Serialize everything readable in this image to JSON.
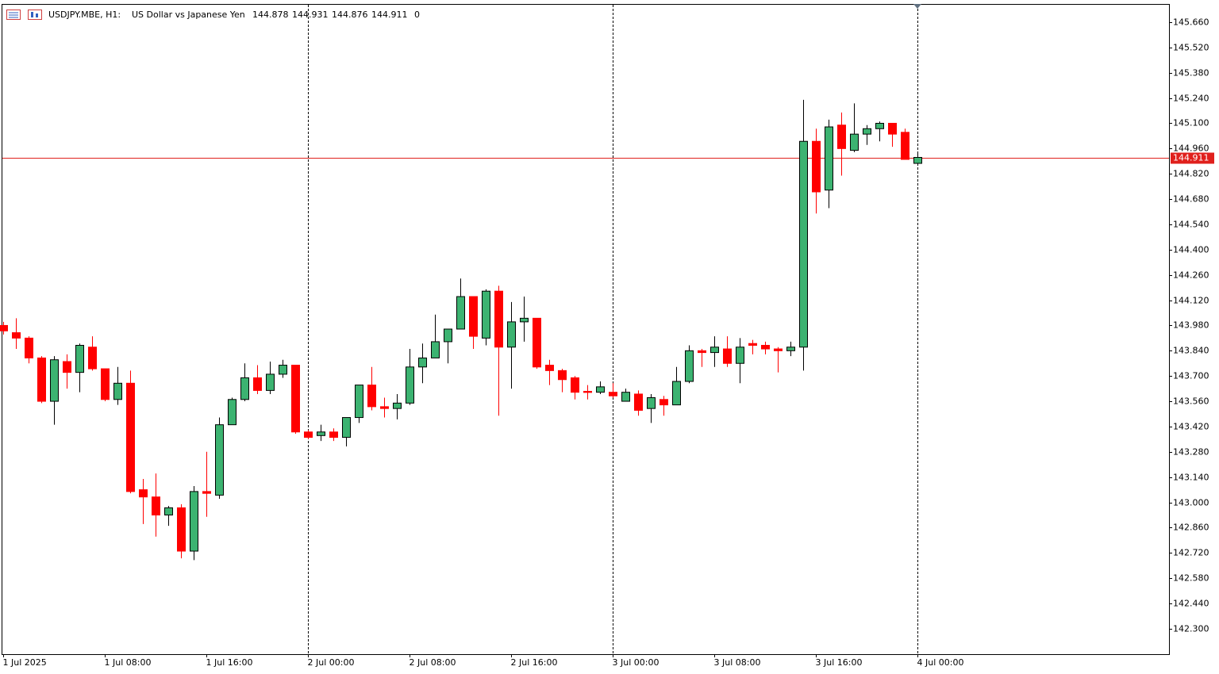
{
  "chart_data": {
    "type": "candlestick",
    "header": {
      "symbol": "USDJPY.MBE, H1:",
      "description": "US Dollar vs Japanese Yen",
      "open": 144.878,
      "high": 144.931,
      "low": 144.876,
      "close": 144.911,
      "volume": 0
    },
    "categories": [
      "1 Jul 2025",
      null,
      null,
      null,
      null,
      null,
      null,
      null,
      "1 Jul 08:00",
      null,
      null,
      null,
      null,
      null,
      null,
      null,
      "1 Jul 16:00",
      null,
      null,
      null,
      null,
      null,
      null,
      null,
      "2 Jul 00:00",
      null,
      null,
      null,
      null,
      null,
      null,
      null,
      "2 Jul 08:00",
      null,
      null,
      null,
      null,
      null,
      null,
      null,
      "2 Jul 16:00",
      null,
      null,
      null,
      null,
      null,
      null,
      null,
      "3 Jul 00:00",
      null,
      null,
      null,
      null,
      null,
      null,
      null,
      "3 Jul 08:00",
      null,
      null,
      null,
      null,
      null,
      null,
      null,
      "3 Jul 16:00",
      null,
      null,
      null,
      null,
      null,
      null,
      null,
      "4 Jul 00:00"
    ],
    "open": [
      143.98,
      143.94,
      143.91,
      143.8,
      143.56,
      143.78,
      143.72,
      143.86,
      143.74,
      143.57,
      143.66,
      143.07,
      143.03,
      142.93,
      142.97,
      142.73,
      143.06,
      143.04,
      143.43,
      143.57,
      143.69,
      143.62,
      143.71,
      143.76,
      143.39,
      143.37,
      143.39,
      143.36,
      143.47,
      143.65,
      143.53,
      143.52,
      143.55,
      143.75,
      143.8,
      143.89,
      143.96,
      144.14,
      143.91,
      144.17,
      143.86,
      144.0,
      144.02,
      143.76,
      143.73,
      143.69,
      143.615,
      143.61,
      143.61,
      143.56,
      143.6,
      143.52,
      143.57,
      143.54,
      143.67,
      143.84,
      143.83,
      143.85,
      143.77,
      143.88,
      143.87,
      143.85,
      143.84,
      143.86,
      145.0,
      144.73,
      145.09,
      144.95,
      145.04,
      145.07,
      145.1,
      145.05,
      144.878
    ],
    "high": [
      144.0,
      144.02,
      143.92,
      143.81,
      143.81,
      143.82,
      143.88,
      143.92,
      143.74,
      143.75,
      143.73,
      143.13,
      143.16,
      142.98,
      142.99,
      143.09,
      143.28,
      143.47,
      143.58,
      143.77,
      143.76,
      143.78,
      143.79,
      143.76,
      143.4,
      143.43,
      143.41,
      143.47,
      143.65,
      143.75,
      143.58,
      143.6,
      143.85,
      143.88,
      144.04,
      143.96,
      144.24,
      144.14,
      144.18,
      144.2,
      144.11,
      144.14,
      144.02,
      143.79,
      143.74,
      143.7,
      143.65,
      143.67,
      143.66,
      143.63,
      143.62,
      143.6,
      143.59,
      143.75,
      143.87,
      143.85,
      143.92,
      143.92,
      143.91,
      143.9,
      143.89,
      143.86,
      143.89,
      145.23,
      145.07,
      145.12,
      145.16,
      145.21,
      145.09,
      145.11,
      145.1,
      145.07,
      144.931
    ],
    "low": [
      143.93,
      143.85,
      143.77,
      143.55,
      143.43,
      143.63,
      143.61,
      143.73,
      143.56,
      143.54,
      143.05,
      142.88,
      142.81,
      142.87,
      142.69,
      142.68,
      142.92,
      143.02,
      143.43,
      143.56,
      143.6,
      143.6,
      143.69,
      143.38,
      143.35,
      143.34,
      143.34,
      143.31,
      143.44,
      143.51,
      143.47,
      143.46,
      143.54,
      143.66,
      143.8,
      143.77,
      143.96,
      143.85,
      143.87,
      143.48,
      143.63,
      143.89,
      143.74,
      143.65,
      143.61,
      143.57,
      143.57,
      143.6,
      143.58,
      143.56,
      143.48,
      143.44,
      143.48,
      143.54,
      143.66,
      143.75,
      143.75,
      143.75,
      143.66,
      143.82,
      143.82,
      143.72,
      143.81,
      143.73,
      144.6,
      144.63,
      144.81,
      144.94,
      144.98,
      145.0,
      144.97,
      144.9,
      144.876
    ],
    "close": [
      143.95,
      143.91,
      143.8,
      143.56,
      143.79,
      143.72,
      143.87,
      143.74,
      143.57,
      143.66,
      143.06,
      143.03,
      142.93,
      142.97,
      142.73,
      143.06,
      143.05,
      143.43,
      143.57,
      143.69,
      143.62,
      143.71,
      143.76,
      143.39,
      143.36,
      143.39,
      143.36,
      143.47,
      143.65,
      143.53,
      143.52,
      143.55,
      143.75,
      143.8,
      143.89,
      143.96,
      144.14,
      143.92,
      144.17,
      143.86,
      144.0,
      144.02,
      143.75,
      143.73,
      143.68,
      143.61,
      143.609,
      143.64,
      143.59,
      143.61,
      143.51,
      143.58,
      143.54,
      143.67,
      143.84,
      143.83,
      143.86,
      143.77,
      143.86,
      143.87,
      143.85,
      143.84,
      143.86,
      145.0,
      144.72,
      145.08,
      144.96,
      145.04,
      145.07,
      145.1,
      145.04,
      144.9,
      144.911
    ],
    "up_color": "#3cb371",
    "down_color": "#ff0000",
    "price_line_color": "#e0201c",
    "ylim": [
      142.159,
      145.761
    ],
    "yticks": [
      {
        "value": 145.66,
        "label": "145.660"
      },
      {
        "value": 145.52,
        "label": "145.520"
      },
      {
        "value": 145.38,
        "label": "145.380"
      },
      {
        "value": 145.24,
        "label": "145.240"
      },
      {
        "value": 145.1,
        "label": "145.100"
      },
      {
        "value": 144.96,
        "label": "144.960"
      },
      {
        "value": 144.82,
        "label": "144.820"
      },
      {
        "value": 144.68,
        "label": "144.680"
      },
      {
        "value": 144.54,
        "label": "144.540"
      },
      {
        "value": 144.4,
        "label": "144.400"
      },
      {
        "value": 144.26,
        "label": "144.260"
      },
      {
        "value": 144.12,
        "label": "144.120"
      },
      {
        "value": 143.98,
        "label": "143.980"
      },
      {
        "value": 143.84,
        "label": "143.840"
      },
      {
        "value": 143.7,
        "label": "143.700"
      },
      {
        "value": 143.56,
        "label": "143.560"
      },
      {
        "value": 143.42,
        "label": "143.420"
      },
      {
        "value": 143.28,
        "label": "143.280"
      },
      {
        "value": 143.14,
        "label": "143.140"
      },
      {
        "value": 143.0,
        "label": "143.000"
      },
      {
        "value": 142.86,
        "label": "142.860"
      },
      {
        "value": 142.72,
        "label": "142.720"
      },
      {
        "value": 142.58,
        "label": "142.580"
      },
      {
        "value": 142.44,
        "label": "142.440"
      },
      {
        "value": 142.3,
        "label": "142.300"
      }
    ]
  }
}
